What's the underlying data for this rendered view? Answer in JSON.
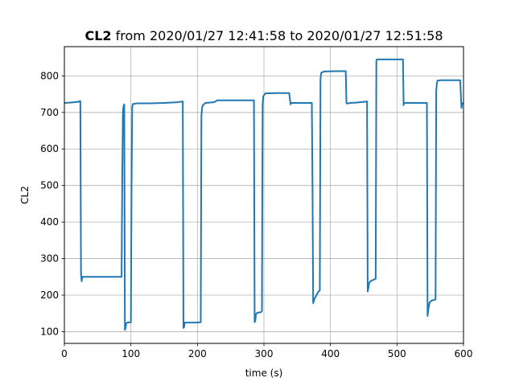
{
  "chart_data": {
    "type": "line",
    "title": {
      "bold": "CL2",
      "rest": " from 2020/01/27 12:41:58 to 2020/01/27 12:51:58"
    },
    "xlabel": "time (s)",
    "ylabel": "CL2",
    "xlim": [
      0,
      600
    ],
    "ylim": [
      68,
      880
    ],
    "xticks": [
      0,
      100,
      200,
      300,
      400,
      500,
      600
    ],
    "yticks": [
      100,
      200,
      300,
      400,
      500,
      600,
      700,
      800
    ],
    "grid": true,
    "color": "#1f77b4",
    "series": [
      {
        "x": [
          0,
          10,
          20,
          24,
          25,
          26,
          27,
          28,
          30,
          50,
          70,
          86,
          87,
          88,
          89,
          90,
          91,
          92,
          93,
          95,
          100,
          101,
          102,
          103,
          110,
          130,
          150,
          170,
          178,
          179,
          180,
          181,
          185,
          200,
          205,
          206,
          207,
          208,
          212,
          225,
          230,
          250,
          270,
          285,
          286,
          287,
          288,
          290,
          295,
          297,
          298,
          299,
          302,
          320,
          338,
          340,
          341,
          345,
          360,
          372,
          373,
          374,
          376,
          379,
          382,
          384,
          385,
          386,
          390,
          410,
          423,
          424,
          425,
          430,
          440,
          450,
          455,
          456,
          457,
          458,
          460,
          468,
          469,
          470,
          480,
          500,
          509,
          510,
          511,
          512,
          520,
          545,
          546,
          547,
          549,
          552,
          558,
          559,
          560,
          561,
          565,
          580,
          595,
          597,
          598,
          600
        ],
        "y": [
          726,
          727,
          729,
          731,
          260,
          238,
          250,
          250,
          250,
          250,
          250,
          250,
          520,
          700,
          718,
          722,
          105,
          110,
          123,
          125,
          126,
          500,
          715,
          723,
          725,
          725,
          726,
          728,
          730,
          110,
          113,
          125,
          125,
          125,
          126,
          690,
          712,
          719,
          726,
          728,
          733,
          733,
          733,
          733,
          126,
          130,
          148,
          152,
          153,
          156,
          720,
          744,
          752,
          753,
          753,
          722,
          726,
          726,
          726,
          726,
          500,
          178,
          190,
          200,
          210,
          213,
          790,
          808,
          812,
          813,
          813,
          726,
          724,
          726,
          727,
          729,
          730,
          210,
          220,
          232,
          238,
          245,
          843,
          845,
          845,
          845,
          845,
          720,
          726,
          726,
          726,
          726,
          143,
          160,
          180,
          185,
          188,
          760,
          780,
          787,
          788,
          788,
          788,
          712,
          725,
          725
        ]
      }
    ]
  }
}
